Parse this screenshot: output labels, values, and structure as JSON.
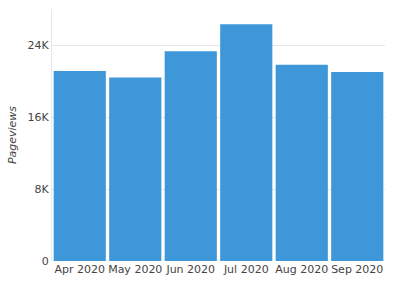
{
  "chart_data": {
    "type": "bar",
    "categories": [
      "Apr 2020",
      "May 2020",
      "Jun 2020",
      "Jul 2020",
      "Aug 2020",
      "Sep 2020"
    ],
    "values": [
      21100,
      20400,
      23300,
      26300,
      21800,
      21000
    ],
    "color": "#3d97d9",
    "y_label": "Pageviews",
    "ylim": [
      0,
      28000
    ],
    "yticks": [
      0,
      {
        "value": 8000,
        "label": "8K"
      },
      {
        "value": 16000,
        "label": "16K"
      },
      {
        "value": 24000,
        "label": "24K"
      }
    ],
    "grid": true
  }
}
